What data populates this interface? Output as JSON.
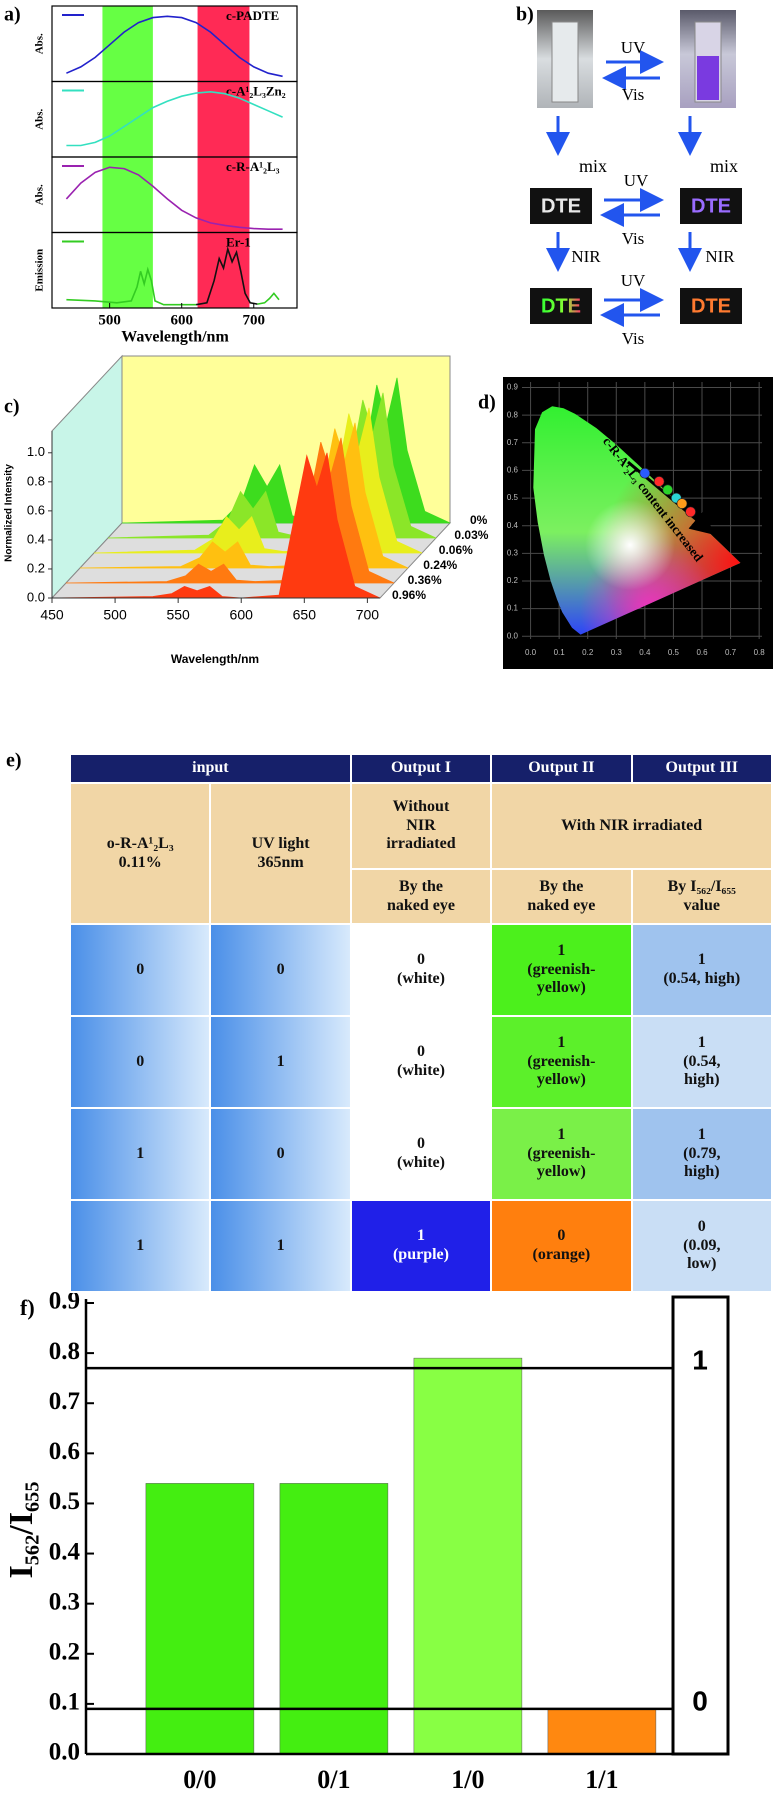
{
  "panel_labels": [
    "a)",
    "b)",
    "c)",
    "d)",
    "e)",
    "f)"
  ],
  "scheme_b": {
    "photo_arrows": [
      {
        "forward": "UV",
        "backward": "Vis"
      },
      {
        "forward": "UV",
        "backward": "Vis"
      },
      {
        "forward": "UV",
        "backward": "Vis"
      }
    ],
    "step_labels": [
      "mix",
      "mix",
      "NIR",
      "NIR"
    ],
    "samples": [
      "DTE",
      "DTE",
      "DTE",
      "DTE"
    ]
  },
  "chart_data": [
    {
      "type": "stacked-spectra",
      "xlabel": "Wavelength/nm",
      "xlim": [
        420,
        760
      ],
      "xticks": [
        500,
        600,
        700
      ],
      "ylim": [
        0,
        1.1
      ],
      "bands": [
        {
          "range": [
            490,
            560
          ],
          "color": "#66ff44"
        },
        {
          "range": [
            622,
            694
          ],
          "color": "#ff2a55"
        }
      ],
      "panels": [
        {
          "label": "c-PADTE",
          "ylabel": "Abs.",
          "series": [
            {
              "color": "#2222cc",
              "x": [
                440,
                460,
                480,
                500,
                520,
                540,
                560,
                580,
                600,
                620,
                640,
                660,
                680,
                700,
                720,
                740
              ],
              "values": [
                0.1,
                0.2,
                0.35,
                0.55,
                0.75,
                0.9,
                0.98,
                1.0,
                0.98,
                0.9,
                0.75,
                0.55,
                0.35,
                0.2,
                0.1,
                0.05
              ]
            }
          ]
        },
        {
          "label": "c-A¹₂L₃Zn₂",
          "ylabel": "Abs.",
          "series": [
            {
              "color": "#33e0c0",
              "x": [
                440,
                460,
                480,
                500,
                520,
                540,
                560,
                580,
                600,
                620,
                640,
                660,
                680,
                700,
                720,
                740
              ],
              "values": [
                0.15,
                0.15,
                0.2,
                0.3,
                0.45,
                0.6,
                0.75,
                0.85,
                0.93,
                0.98,
                1.0,
                0.97,
                0.9,
                0.8,
                0.7,
                0.6
              ]
            }
          ]
        },
        {
          "label": "c-R-A¹₂L₃",
          "ylabel": "Abs.",
          "series": [
            {
              "color": "#9a22b0",
              "x": [
                440,
                460,
                480,
                500,
                520,
                540,
                560,
                580,
                600,
                620,
                640,
                660,
                680,
                700,
                720,
                740
              ],
              "values": [
                0.5,
                0.75,
                0.92,
                1.0,
                0.98,
                0.88,
                0.7,
                0.5,
                0.32,
                0.2,
                0.12,
                0.08,
                0.05,
                0.03,
                0.02,
                0.02
              ]
            }
          ]
        },
        {
          "label": "Er-1",
          "ylabel": "Emission",
          "series": [
            {
              "color": "#33cc22",
              "x": [
                440,
                480,
                510,
                530,
                538,
                543,
                548,
                553,
                558,
                563,
                575,
                620
              ],
              "values": [
                0.1,
                0.08,
                0.05,
                0.08,
                0.3,
                0.55,
                0.35,
                0.58,
                0.4,
                0.08,
                0.02,
                0.02
              ]
            },
            {
              "color": "#111111",
              "x": [
                620,
                635,
                645,
                652,
                658,
                664,
                670,
                676,
                682,
                688,
                695,
                705
              ],
              "values": [
                0.02,
                0.05,
                0.4,
                0.75,
                0.6,
                0.9,
                0.7,
                0.85,
                0.55,
                0.2,
                0.05,
                0.03
              ]
            },
            {
              "color": "#33cc22",
              "x": [
                705,
                715,
                722,
                728,
                735
              ],
              "values": [
                0.03,
                0.05,
                0.12,
                0.2,
                0.1
              ]
            }
          ]
        }
      ]
    },
    {
      "type": "waterfall",
      "xlabel": "Wavelength/nm",
      "ylabel": "Normalized Intensity",
      "xlim": [
        450,
        710
      ],
      "xticks": [
        450,
        500,
        550,
        600,
        650,
        700
      ],
      "ylim": [
        0,
        1.15
      ],
      "yticks": [
        {
          "value": 0,
          "label": "0.0"
        },
        0.2,
        0.4,
        0.6,
        0.8,
        {
          "value": 1,
          "label": "1.0"
        }
      ],
      "x": [
        450,
        530,
        545,
        555,
        565,
        575,
        585,
        600,
        630,
        645,
        652,
        660,
        668,
        676,
        690,
        710
      ],
      "series": [
        {
          "name": "0%",
          "color": "#3ddc1e",
          "values": [
            0,
            0.02,
            0.15,
            0.4,
            0.25,
            0.4,
            0.05,
            0.01,
            0.02,
            0.6,
            0.95,
            0.7,
            1.0,
            0.5,
            0.08,
            0
          ]
        },
        {
          "name": "0.03%",
          "color": "#8be628",
          "values": [
            0,
            0.02,
            0.12,
            0.32,
            0.2,
            0.32,
            0.04,
            0.01,
            0.02,
            0.62,
            0.95,
            0.72,
            1.0,
            0.5,
            0.08,
            0
          ]
        },
        {
          "name": "0.06%",
          "color": "#e8ee1c",
          "values": [
            0,
            0.02,
            0.1,
            0.25,
            0.16,
            0.25,
            0.03,
            0.01,
            0.02,
            0.63,
            0.96,
            0.72,
            1.0,
            0.52,
            0.08,
            0
          ]
        },
        {
          "name": "0.24%",
          "color": "#ffc010",
          "values": [
            0,
            0.01,
            0.07,
            0.18,
            0.11,
            0.18,
            0.02,
            0.01,
            0.02,
            0.65,
            0.96,
            0.74,
            1.0,
            0.52,
            0.08,
            0
          ]
        },
        {
          "name": "0.36%",
          "color": "#ff7a10",
          "values": [
            0,
            0.01,
            0.05,
            0.13,
            0.08,
            0.13,
            0.02,
            0.01,
            0.02,
            0.66,
            0.97,
            0.75,
            1.0,
            0.53,
            0.08,
            0
          ]
        },
        {
          "name": "0.96%",
          "color": "#ff3a10",
          "values": [
            0,
            0.01,
            0.03,
            0.08,
            0.05,
            0.08,
            0.01,
            0,
            0.02,
            0.68,
            0.98,
            0.76,
            1.0,
            0.54,
            0.08,
            0
          ]
        }
      ]
    },
    {
      "type": "cie",
      "annotation": "c-R-A¹₂L₃ content increased",
      "xlim": [
        -0.03,
        0.81
      ],
      "ylim": [
        -0.01,
        0.92
      ],
      "xticks": [
        {
          "value": 0,
          "label": "0.0"
        },
        0.1,
        0.2,
        0.3,
        0.4,
        0.5,
        0.6,
        0.7,
        0.8
      ],
      "yticks": [
        {
          "value": 0,
          "label": "0.0"
        },
        0.1,
        0.2,
        0.3,
        0.4,
        0.5,
        0.6,
        0.7,
        0.8,
        0.9
      ],
      "x": [
        0.4,
        0.45,
        0.48,
        0.51,
        0.53,
        0.56
      ],
      "values": [
        0.59,
        0.56,
        0.53,
        0.5,
        0.48,
        0.45
      ],
      "colors": [
        "#2a5cff",
        "#ff2a2a",
        "#2ad42a",
        "#2ad4d4",
        "#ff9a1a",
        "#ff2a2a"
      ]
    },
    {
      "type": "bar",
      "ylabel": "I₅₆₂/I₆₅₅",
      "categories": [
        "0/0",
        "0/1",
        "1/0",
        "1/1"
      ],
      "values": [
        0.54,
        0.54,
        0.79,
        0.09
      ],
      "colors": [
        "#44ee11",
        "#44ee11",
        "#88ff44",
        "#ff8810"
      ],
      "ylim": [
        0,
        0.9
      ],
      "yticks": [
        {
          "value": 0,
          "label": "0.0"
        },
        0.1,
        0.2,
        0.3,
        0.4,
        0.5,
        0.6,
        0.7,
        0.8,
        0.9
      ],
      "thresholds": [
        {
          "value": 0.77,
          "label": "1"
        },
        {
          "value": 0.09,
          "label": "0"
        }
      ]
    }
  ],
  "table_e": {
    "header": [
      "input",
      "Output I",
      "Output II",
      "Output III"
    ],
    "columns_row": [
      [
        "o-R-A¹₂L₃",
        "0.11%"
      ],
      [
        "UV light",
        "365nm"
      ],
      [
        "Without",
        "NIR",
        "irradiated"
      ],
      [
        "With NIR irradiated"
      ]
    ],
    "method_row": [
      [
        "By the",
        "naked eye"
      ],
      [
        "By the",
        "naked eye"
      ],
      [
        "By I₅₆₂/I₆₅₅",
        "value"
      ]
    ],
    "rows": [
      [
        [
          "0"
        ],
        [
          "0"
        ],
        [
          "0",
          "(white)"
        ],
        [
          "1",
          "(greenish-",
          "yellow)"
        ],
        [
          "1",
          "(0.54, high)"
        ]
      ],
      [
        [
          "0"
        ],
        [
          "1"
        ],
        [
          "0",
          "(white)"
        ],
        [
          "1",
          "(greenish-",
          "yellow)"
        ],
        [
          "1",
          "(0.54,",
          "high)"
        ]
      ],
      [
        [
          "1"
        ],
        [
          "0"
        ],
        [
          "0",
          "(white)"
        ],
        [
          "1",
          "(greenish-",
          "yellow)"
        ],
        [
          "1",
          "(0.79,",
          "high)"
        ]
      ],
      [
        [
          "1"
        ],
        [
          "1"
        ],
        [
          "1",
          "(purple)"
        ],
        [
          "0",
          "(orange)"
        ],
        [
          "0",
          "(0.09,",
          "low)"
        ]
      ]
    ]
  }
}
